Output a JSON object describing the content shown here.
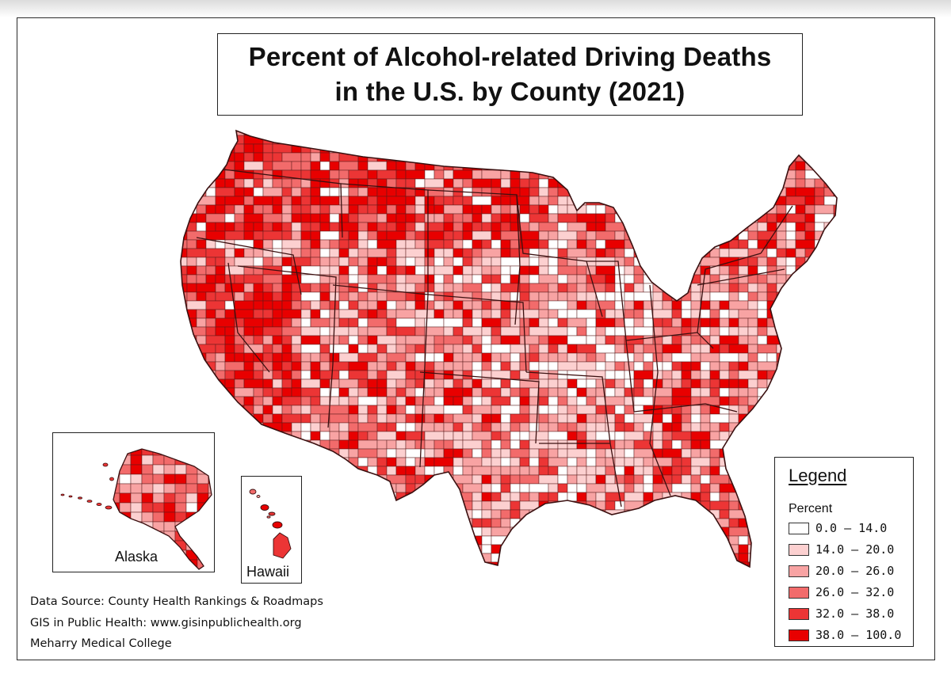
{
  "title": {
    "line1": "Percent of Alcohol-related Driving Deaths",
    "line2": "in the U.S. by County (2021)"
  },
  "colors": {
    "class_0": "#ffffff",
    "class_1": "#fcd0d0",
    "class_2": "#f8a3a3",
    "class_3": "#f26b6b",
    "class_4": "#ec3535",
    "class_5": "#e80000",
    "boundary": "#5a1a1a"
  },
  "legend": {
    "title": "Legend",
    "subtitle": "Percent",
    "classes": [
      {
        "label": "0.0 – 14.0",
        "color": "#ffffff"
      },
      {
        "label": "14.0 – 20.0",
        "color": "#fcd0d0"
      },
      {
        "label": "20.0 – 26.0",
        "color": "#f8a3a3"
      },
      {
        "label": "26.0 – 32.0",
        "color": "#f26b6b"
      },
      {
        "label": "32.0 – 38.0",
        "color": "#ec3535"
      },
      {
        "label": "38.0 – 100.0",
        "color": "#e80000"
      }
    ]
  },
  "insets": {
    "alaska": {
      "label": "Alaska"
    },
    "hawaii": {
      "label": "Hawaii"
    }
  },
  "source": {
    "line1": "Data Source: County Health Rankings & Roadmaps",
    "line2": "GIS in Public Health: www.gisinpublichealth.org",
    "line3": "Meharry Medical College"
  }
}
